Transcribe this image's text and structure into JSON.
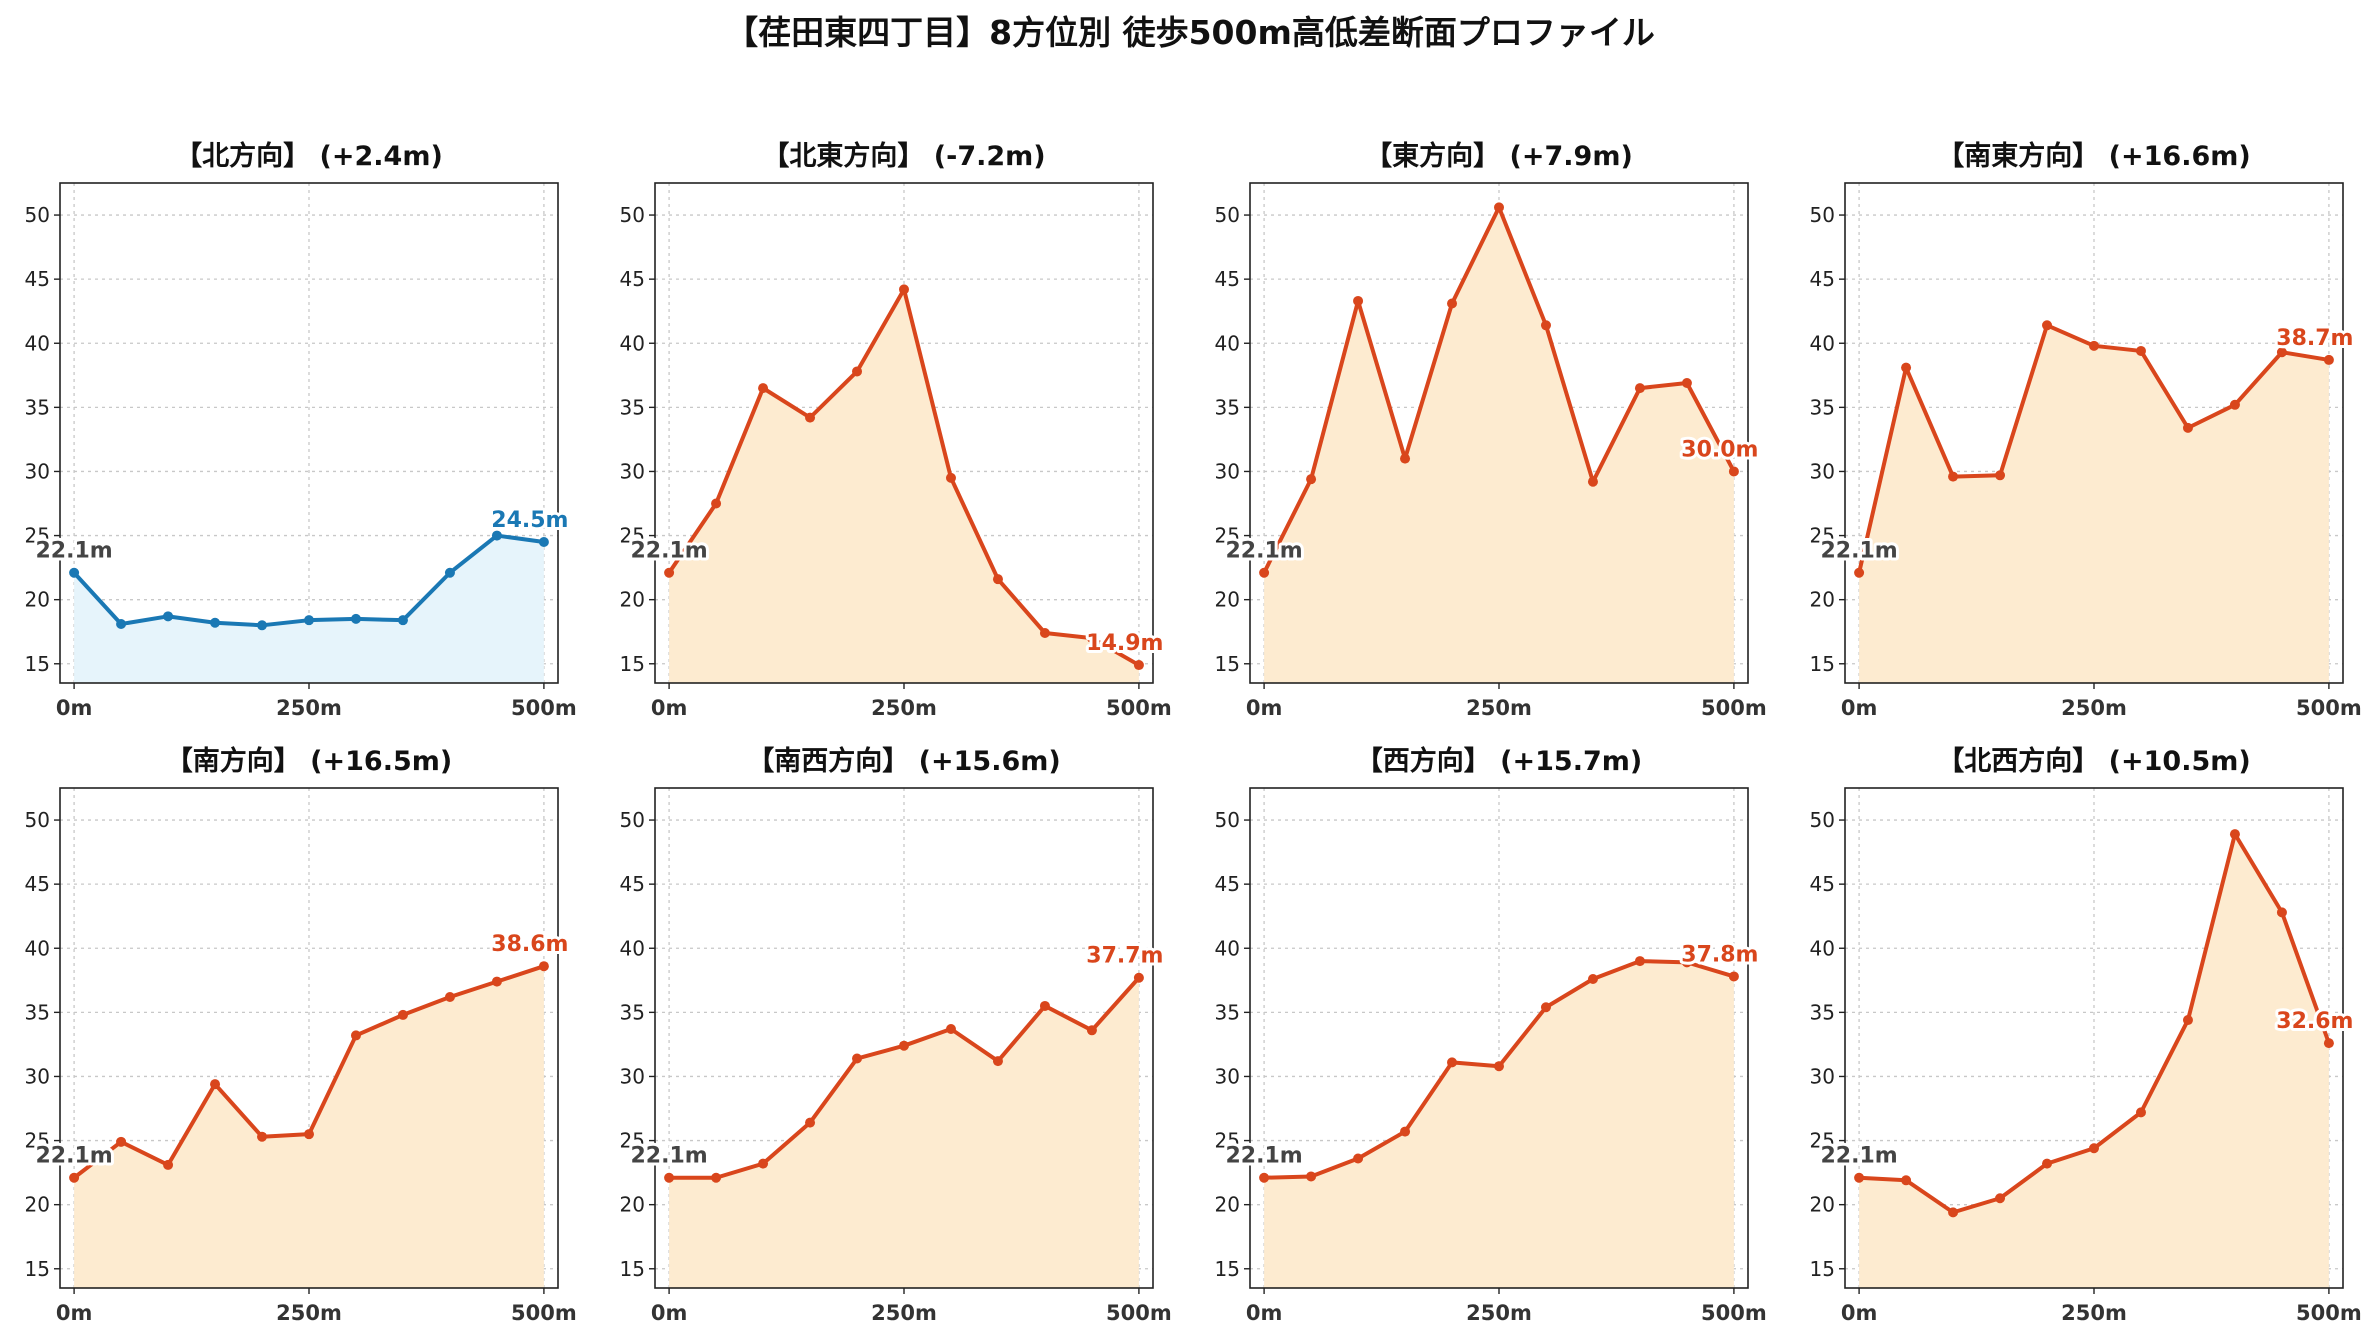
{
  "title": "【荏田東四丁目】8方位別 徒歩500m高低差断面プロファイル",
  "colors": {
    "down_line": "#1a78b4",
    "down_fill": "#e6f4fb",
    "up_line": "#d9461c",
    "up_fill": "#fdebd0",
    "start_label": "#444444",
    "grid": "#c8c8c8"
  },
  "chart_data": [
    {
      "type": "area",
      "title": "【北方向】 (+2.4m)",
      "trend": "down",
      "x": [
        0,
        50,
        100,
        150,
        200,
        250,
        300,
        350,
        400,
        450,
        500
      ],
      "y": [
        22.1,
        18.1,
        18.7,
        18.2,
        18.0,
        18.4,
        18.5,
        18.4,
        22.1,
        25.0,
        24.5
      ],
      "start_label": "22.1m",
      "end_label": "24.5m",
      "xticks": [
        "0m",
        "250m",
        "500m"
      ],
      "yticks": [
        15,
        20,
        25,
        30,
        35,
        40,
        45,
        50
      ],
      "xlim": [
        -15,
        515
      ],
      "ylim": [
        13.5,
        52.5
      ],
      "grid": true
    },
    {
      "type": "area",
      "title": "【北東方向】 (-7.2m)",
      "trend": "up",
      "x": [
        0,
        50,
        100,
        150,
        200,
        250,
        300,
        350,
        400,
        450,
        500
      ],
      "y": [
        22.1,
        27.5,
        36.5,
        34.2,
        37.8,
        44.2,
        29.5,
        21.6,
        17.4,
        17.0,
        14.9
      ],
      "start_label": "22.1m",
      "end_label": "14.9m",
      "xticks": [
        "0m",
        "250m",
        "500m"
      ],
      "yticks": [
        15,
        20,
        25,
        30,
        35,
        40,
        45,
        50
      ],
      "xlim": [
        -15,
        515
      ],
      "ylim": [
        13.5,
        52.5
      ],
      "grid": true
    },
    {
      "type": "area",
      "title": "【東方向】 (+7.9m)",
      "trend": "up",
      "x": [
        0,
        50,
        100,
        150,
        200,
        250,
        300,
        350,
        400,
        450,
        500
      ],
      "y": [
        22.1,
        29.4,
        43.3,
        31.0,
        43.1,
        50.6,
        41.4,
        29.2,
        36.5,
        36.9,
        30.0
      ],
      "start_label": "22.1m",
      "end_label": "30.0m",
      "xticks": [
        "0m",
        "250m",
        "500m"
      ],
      "yticks": [
        15,
        20,
        25,
        30,
        35,
        40,
        45,
        50
      ],
      "xlim": [
        -15,
        515
      ],
      "ylim": [
        13.5,
        52.5
      ],
      "grid": true
    },
    {
      "type": "area",
      "title": "【南東方向】 (+16.6m)",
      "trend": "up",
      "x": [
        0,
        50,
        100,
        150,
        200,
        250,
        300,
        350,
        400,
        450,
        500
      ],
      "y": [
        22.1,
        38.1,
        29.6,
        29.7,
        41.4,
        39.8,
        39.4,
        33.4,
        35.2,
        39.3,
        38.7
      ],
      "start_label": "22.1m",
      "end_label": "38.7m",
      "xticks": [
        "0m",
        "250m",
        "500m"
      ],
      "yticks": [
        15,
        20,
        25,
        30,
        35,
        40,
        45,
        50
      ],
      "xlim": [
        -15,
        515
      ],
      "ylim": [
        13.5,
        52.5
      ],
      "grid": true
    },
    {
      "type": "area",
      "title": "【南方向】 (+16.5m)",
      "trend": "up",
      "x": [
        0,
        50,
        100,
        150,
        200,
        250,
        300,
        350,
        400,
        450,
        500
      ],
      "y": [
        22.1,
        24.9,
        23.1,
        29.4,
        25.3,
        25.5,
        33.2,
        34.8,
        36.2,
        37.4,
        38.6
      ],
      "start_label": "22.1m",
      "end_label": "38.6m",
      "xticks": [
        "0m",
        "250m",
        "500m"
      ],
      "yticks": [
        15,
        20,
        25,
        30,
        35,
        40,
        45,
        50
      ],
      "xlim": [
        -15,
        515
      ],
      "ylim": [
        13.5,
        52.5
      ],
      "grid": true
    },
    {
      "type": "area",
      "title": "【南西方向】 (+15.6m)",
      "trend": "up",
      "x": [
        0,
        50,
        100,
        150,
        200,
        250,
        300,
        350,
        400,
        450,
        500
      ],
      "y": [
        22.1,
        22.1,
        23.2,
        26.4,
        31.4,
        32.4,
        33.7,
        31.2,
        35.5,
        33.6,
        37.7
      ],
      "start_label": "22.1m",
      "end_label": "37.7m",
      "xticks": [
        "0m",
        "250m",
        "500m"
      ],
      "yticks": [
        15,
        20,
        25,
        30,
        35,
        40,
        45,
        50
      ],
      "xlim": [
        -15,
        515
      ],
      "ylim": [
        13.5,
        52.5
      ],
      "grid": true
    },
    {
      "type": "area",
      "title": "【西方向】 (+15.7m)",
      "trend": "up",
      "x": [
        0,
        50,
        100,
        150,
        200,
        250,
        300,
        350,
        400,
        450,
        500
      ],
      "y": [
        22.1,
        22.2,
        23.6,
        25.7,
        31.1,
        30.8,
        35.4,
        37.6,
        39.0,
        38.9,
        37.8
      ],
      "start_label": "22.1m",
      "end_label": "37.8m",
      "xticks": [
        "0m",
        "250m",
        "500m"
      ],
      "yticks": [
        15,
        20,
        25,
        30,
        35,
        40,
        45,
        50
      ],
      "xlim": [
        -15,
        515
      ],
      "ylim": [
        13.5,
        52.5
      ],
      "grid": true
    },
    {
      "type": "area",
      "title": "【北西方向】 (+10.5m)",
      "trend": "up",
      "x": [
        0,
        50,
        100,
        150,
        200,
        250,
        300,
        350,
        400,
        450,
        500
      ],
      "y": [
        22.1,
        21.9,
        19.4,
        20.5,
        23.2,
        24.4,
        27.2,
        34.4,
        48.9,
        42.8,
        32.6
      ],
      "start_label": "22.1m",
      "end_label": "32.6m",
      "xticks": [
        "0m",
        "250m",
        "500m"
      ],
      "yticks": [
        15,
        20,
        25,
        30,
        35,
        40,
        45,
        50
      ],
      "xlim": [
        -15,
        515
      ],
      "ylim": [
        13.5,
        52.5
      ],
      "grid": true
    }
  ]
}
